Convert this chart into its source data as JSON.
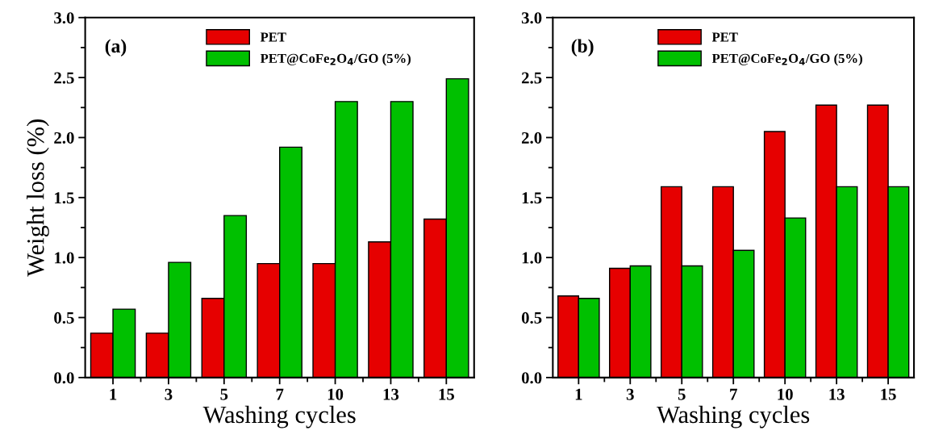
{
  "chart_data": [
    {
      "type": "bar",
      "xlabel": "Washing cycles",
      "ylabel": "Weight loss (%)",
      "annotations": [
        "(a)"
      ],
      "categories": [
        "1",
        "3",
        "5",
        "7",
        "10",
        "13",
        "15"
      ],
      "series": [
        {
          "name": "PET",
          "color": "#e60000",
          "values": [
            0.37,
            0.37,
            0.66,
            0.95,
            0.95,
            1.13,
            1.32
          ]
        },
        {
          "name": "PET@CoFe$_{2}$O$_{4}$/GO (5%)",
          "color": "#00c000",
          "values": [
            0.57,
            0.96,
            1.35,
            1.92,
            2.3,
            2.3,
            2.49
          ]
        }
      ],
      "ylim": [
        0,
        3.0
      ],
      "yticks": [
        {
          "value": 0,
          "label": "0.0"
        },
        0.5,
        {
          "value": 1,
          "label": "1.0"
        },
        1.5,
        {
          "value": 2,
          "label": "2.0"
        },
        2.5,
        {
          "value": 3,
          "label": "3.0"
        }
      ],
      "legend": "top",
      "grid": false
    },
    {
      "type": "bar",
      "xlabel": "Washing cycles",
      "annotations": [
        "(b)"
      ],
      "categories": [
        "1",
        "3",
        "5",
        "7",
        "10",
        "13",
        "15"
      ],
      "series": [
        {
          "name": "PET",
          "color": "#e60000",
          "values": [
            0.68,
            0.91,
            1.59,
            1.59,
            2.05,
            2.27,
            2.27
          ]
        },
        {
          "name": "PET@CoFe$_{2}$O$_{4}$/GO (5%)",
          "color": "#00c000",
          "values": [
            0.66,
            0.93,
            0.93,
            1.06,
            1.33,
            1.59,
            1.59
          ]
        }
      ],
      "ylim": [
        0,
        3.0
      ],
      "yticks": [
        {
          "value": 0,
          "label": "0.0"
        },
        0.5,
        {
          "value": 1,
          "label": "1.0"
        },
        1.5,
        {
          "value": 2,
          "label": "2.0"
        },
        2.5,
        {
          "value": 3,
          "label": "3.0"
        }
      ],
      "legend": "top",
      "grid": false
    }
  ]
}
